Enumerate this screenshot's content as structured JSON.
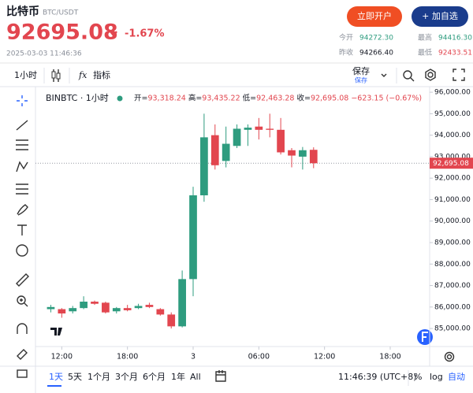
{
  "header": {
    "title": "比特币",
    "pair": "BTC/USDT",
    "price": "92695.08",
    "change": "-1.67%",
    "datetime": "2025-03-03 11:46:36",
    "open_account": "立即开户",
    "add_watchlist": "+ 加自选",
    "stats": [
      {
        "label": "今开",
        "value": "94272.30"
      },
      {
        "label": "最高",
        "value": "94416.30"
      },
      {
        "label": "昨收",
        "value": "94266.40"
      },
      {
        "label": "最低",
        "value": "92433.51"
      }
    ]
  },
  "toolbar": {
    "interval": "1小时",
    "indicator_icon": "fx",
    "indicators": "指标",
    "save": "保存",
    "save_sub": "保存"
  },
  "chart_data": {
    "type": "candlestick",
    "symbol": "BINBTC · 1小时",
    "legend_ohlc": [
      {
        "label": "开=",
        "value": "93,318.24"
      },
      {
        "label": "高=",
        "value": "93,435.22"
      },
      {
        "label": "低=",
        "value": "92,463.28"
      },
      {
        "label": "收=",
        "value": "92,695.08"
      }
    ],
    "legend_change": "−623.15 (−0.67%)",
    "x": [
      11,
      12,
      13,
      14,
      15,
      16,
      17,
      18,
      19,
      20,
      21,
      22,
      23,
      24,
      25,
      26,
      27,
      28,
      29,
      30,
      31,
      32,
      33,
      34,
      35
    ],
    "open": [
      85900,
      85900,
      85800,
      85950,
      86250,
      86200,
      85800,
      85950,
      85950,
      86100,
      85900,
      85650,
      85100,
      87300,
      91200,
      94000,
      92800,
      93500,
      94250,
      94400,
      94300,
      94250,
      93300,
      93000,
      93318.24
    ],
    "high": [
      86100,
      85950,
      86050,
      86500,
      86300,
      86250,
      86000,
      86100,
      86150,
      86200,
      85950,
      85750,
      87700,
      91600,
      95000,
      94500,
      94400,
      94500,
      94500,
      94800,
      95000,
      94800,
      93400,
      93450,
      93435.22
    ],
    "low": [
      85750,
      85500,
      85700,
      85900,
      86100,
      85700,
      85700,
      85800,
      85900,
      85950,
      85600,
      85000,
      85050,
      86500,
      90900,
      92400,
      92500,
      93400,
      93500,
      93800,
      93900,
      93100,
      92500,
      92400,
      92463.28
    ],
    "close": [
      86000,
      85700,
      85950,
      86250,
      86150,
      85750,
      85950,
      85850,
      86050,
      86000,
      85650,
      85100,
      87300,
      91200,
      93900,
      92600,
      93600,
      94300,
      94350,
      94250,
      94250,
      93200,
      93050,
      93300,
      92695.08
    ],
    "up_color": "#2e9c7f",
    "down_color": "#e2464f",
    "last_price": {
      "value": 92695.08,
      "label": "92,695.08"
    },
    "xlim": [
      9.6,
      45.6
    ],
    "xticks": [
      {
        "value": 12,
        "label": "12:00"
      },
      {
        "value": 18,
        "label": "18:00"
      },
      {
        "value": 24,
        "label": "3"
      },
      {
        "value": 30,
        "label": "06:00"
      },
      {
        "value": 36,
        "label": "12:00"
      },
      {
        "value": 42,
        "label": "18:00"
      }
    ],
    "ylim": [
      84160,
      96260
    ],
    "yticks": [
      {
        "value": 85000,
        "label": "85,000.00"
      },
      {
        "value": 86000,
        "label": "86,000.00"
      },
      {
        "value": 87000,
        "label": "87,000.00"
      },
      {
        "value": 88000,
        "label": "88,000.00"
      },
      {
        "value": 89000,
        "label": "89,000.00"
      },
      {
        "value": 90000,
        "label": "90,000.00"
      },
      {
        "value": 91000,
        "label": "91,000.00"
      },
      {
        "value": 92000,
        "label": "92,000.00"
      },
      {
        "value": 93000,
        "label": "93,000.00"
      },
      {
        "value": 94000,
        "label": "94,000.00"
      },
      {
        "value": 95000,
        "label": "95,000.00"
      },
      {
        "value": 96000,
        "label": "96,000.00"
      }
    ],
    "grid": false
  },
  "footer": {
    "ranges": [
      "1天",
      "5天",
      "1个月",
      "3个月",
      "6个月",
      "1年",
      "All"
    ],
    "clock": "11:46:39 (UTC+8)",
    "percent": "%",
    "log": "log",
    "auto": "自动"
  }
}
